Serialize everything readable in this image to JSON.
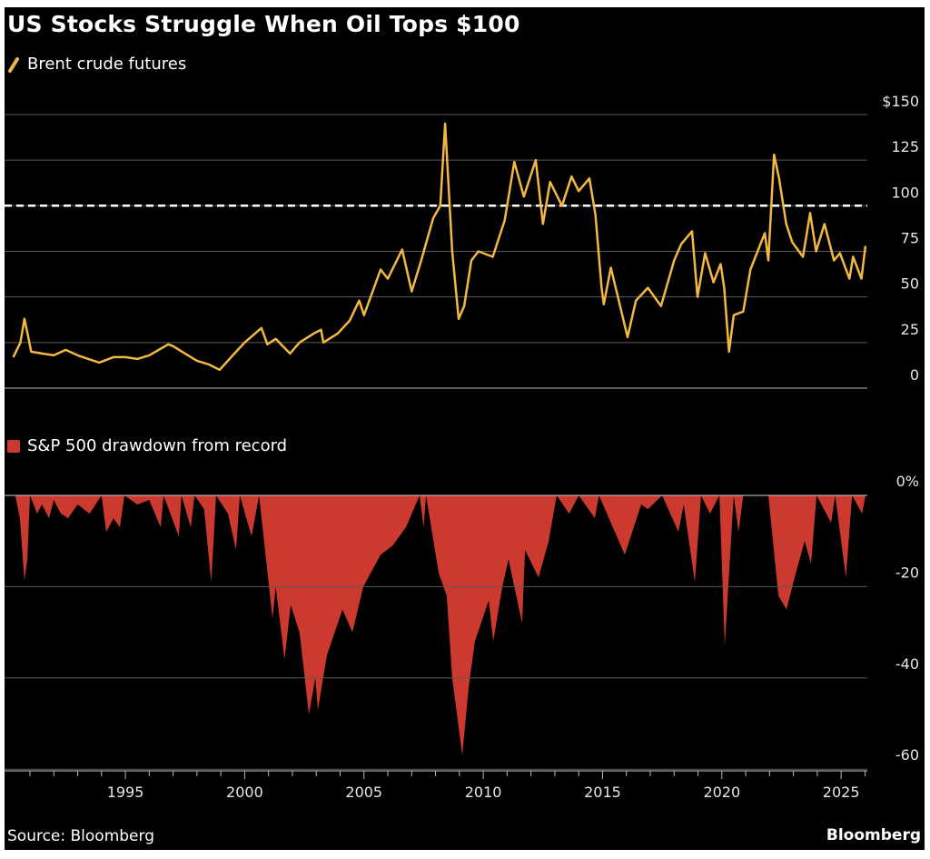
{
  "title": "US Stocks Struggle When Oil Tops $100",
  "source": "Source: Bloomberg",
  "brand": "Bloomberg",
  "colors": {
    "oil": "#f2b844",
    "drawdown": "#cc3a2f",
    "reference": "#ffffff",
    "grid": "#5a5a5a",
    "background": "#000000"
  },
  "chart_data": [
    {
      "type": "line",
      "legend": "Brent crude futures",
      "legend_placement": "top-left",
      "ylim": [
        0,
        150
      ],
      "yticks": [
        {
          "v": 150,
          "label": "$150"
        },
        {
          "v": 125,
          "label": "125"
        },
        {
          "v": 100,
          "label": "100"
        },
        {
          "v": 75,
          "label": "75"
        },
        {
          "v": 50,
          "label": "50"
        },
        {
          "v": 25,
          "label": "25"
        },
        {
          "v": 0,
          "label": "0"
        }
      ],
      "reference_line": {
        "value": 100,
        "style": "dashed"
      },
      "grid": true,
      "points": [
        [
          1990.3,
          17
        ],
        [
          1990.6,
          25
        ],
        [
          1990.77,
          38
        ],
        [
          1990.9,
          30
        ],
        [
          1991.05,
          20
        ],
        [
          1991.5,
          19
        ],
        [
          1992,
          18
        ],
        [
          1992.5,
          21
        ],
        [
          1993,
          18
        ],
        [
          1993.9,
          14
        ],
        [
          1994.5,
          17
        ],
        [
          1995,
          17
        ],
        [
          1995.5,
          16
        ],
        [
          1996,
          18
        ],
        [
          1996.8,
          24
        ],
        [
          1997,
          23
        ],
        [
          1997.5,
          19
        ],
        [
          1998,
          15
        ],
        [
          1998.5,
          13
        ],
        [
          1998.95,
          10
        ],
        [
          1999.5,
          18
        ],
        [
          2000,
          25
        ],
        [
          2000.7,
          33
        ],
        [
          2000.95,
          24
        ],
        [
          2001.3,
          27
        ],
        [
          2001.9,
          19
        ],
        [
          2002.3,
          25
        ],
        [
          2002.9,
          30
        ],
        [
          2003.2,
          32
        ],
        [
          2003.3,
          25
        ],
        [
          2003.9,
          30
        ],
        [
          2004.4,
          37
        ],
        [
          2004.8,
          48
        ],
        [
          2005,
          40
        ],
        [
          2005.7,
          65
        ],
        [
          2006,
          60
        ],
        [
          2006.6,
          76
        ],
        [
          2007,
          53
        ],
        [
          2007.4,
          70
        ],
        [
          2007.9,
          93
        ],
        [
          2008.2,
          100
        ],
        [
          2008.4,
          145
        ],
        [
          2008.7,
          75
        ],
        [
          2008.97,
          38
        ],
        [
          2009.2,
          45
        ],
        [
          2009.5,
          70
        ],
        [
          2009.8,
          75
        ],
        [
          2010.4,
          72
        ],
        [
          2010.9,
          92
        ],
        [
          2011.3,
          124
        ],
        [
          2011.7,
          105
        ],
        [
          2012.2,
          125
        ],
        [
          2012.5,
          90
        ],
        [
          2012.8,
          113
        ],
        [
          2013.3,
          100
        ],
        [
          2013.7,
          116
        ],
        [
          2014,
          108
        ],
        [
          2014.45,
          115
        ],
        [
          2014.7,
          95
        ],
        [
          2014.96,
          55
        ],
        [
          2015.05,
          46
        ],
        [
          2015.35,
          66
        ],
        [
          2015.7,
          47
        ],
        [
          2016.05,
          28
        ],
        [
          2016.4,
          48
        ],
        [
          2016.9,
          55
        ],
        [
          2017.45,
          45
        ],
        [
          2018,
          70
        ],
        [
          2018.3,
          79
        ],
        [
          2018.75,
          86
        ],
        [
          2018.98,
          50
        ],
        [
          2019.3,
          74
        ],
        [
          2019.65,
          58
        ],
        [
          2019.95,
          68
        ],
        [
          2020.1,
          55
        ],
        [
          2020.3,
          20
        ],
        [
          2020.5,
          40
        ],
        [
          2020.9,
          42
        ],
        [
          2021.2,
          65
        ],
        [
          2021.8,
          85
        ],
        [
          2021.95,
          70
        ],
        [
          2022.19,
          128
        ],
        [
          2022.4,
          115
        ],
        [
          2022.7,
          90
        ],
        [
          2022.95,
          80
        ],
        [
          2023.4,
          72
        ],
        [
          2023.7,
          96
        ],
        [
          2023.95,
          75
        ],
        [
          2024.3,
          90
        ],
        [
          2024.7,
          70
        ],
        [
          2024.95,
          74
        ],
        [
          2025.35,
          60
        ],
        [
          2025.5,
          72
        ],
        [
          2025.85,
          60
        ],
        [
          2026.02,
          78
        ]
      ]
    },
    {
      "type": "area",
      "legend": "S&P 500 drawdown from record",
      "legend_placement": "top-left",
      "ylim": [
        -60,
        0
      ],
      "yticks": [
        {
          "v": 0,
          "label": "0%"
        },
        {
          "v": -20,
          "label": "-20"
        },
        {
          "v": -40,
          "label": "-40"
        },
        {
          "v": -60,
          "label": "-60"
        }
      ],
      "grid": true,
      "points": [
        [
          1990.39,
          0
        ],
        [
          1990.58,
          -5
        ],
        [
          1990.77,
          -18.6
        ],
        [
          1990.89,
          -14
        ],
        [
          1991.0,
          0
        ],
        [
          1991.3,
          -4
        ],
        [
          1991.5,
          -2
        ],
        [
          1991.8,
          -5
        ],
        [
          1992.0,
          -1
        ],
        [
          1992.3,
          -4
        ],
        [
          1992.6,
          -5
        ],
        [
          1993.0,
          -2
        ],
        [
          1993.5,
          -4
        ],
        [
          1994.0,
          0
        ],
        [
          1994.2,
          -8
        ],
        [
          1994.5,
          -5
        ],
        [
          1994.77,
          -7
        ],
        [
          1994.96,
          0
        ],
        [
          1995.5,
          -2
        ],
        [
          1996.0,
          -1
        ],
        [
          1996.48,
          -7
        ],
        [
          1996.6,
          0
        ],
        [
          1997.24,
          -9
        ],
        [
          1997.35,
          0
        ],
        [
          1997.74,
          -7
        ],
        [
          1997.9,
          0
        ],
        [
          1998.3,
          -3
        ],
        [
          1998.6,
          -19
        ],
        [
          1998.8,
          0
        ],
        [
          1999.3,
          -4
        ],
        [
          1999.64,
          -12
        ],
        [
          1999.8,
          0
        ],
        [
          2000.29,
          -9
        ],
        [
          2000.6,
          0
        ],
        [
          2001.17,
          -27
        ],
        [
          2001.3,
          -20
        ],
        [
          2001.67,
          -36
        ],
        [
          2001.93,
          -24
        ],
        [
          2002.3,
          -30
        ],
        [
          2002.69,
          -48
        ],
        [
          2002.96,
          -40
        ],
        [
          2003.07,
          -47
        ],
        [
          2003.45,
          -35
        ],
        [
          2004.1,
          -25
        ],
        [
          2004.52,
          -30
        ],
        [
          2004.97,
          -20
        ],
        [
          2005.7,
          -13
        ],
        [
          2006.2,
          -11
        ],
        [
          2006.76,
          -7
        ],
        [
          2007.33,
          0
        ],
        [
          2007.5,
          -7
        ],
        [
          2007.6,
          0
        ],
        [
          2008.13,
          -17
        ],
        [
          2008.47,
          -22
        ],
        [
          2008.7,
          -40
        ],
        [
          2009.12,
          -57
        ],
        [
          2009.39,
          -42
        ],
        [
          2009.65,
          -32
        ],
        [
          2010.23,
          -23
        ],
        [
          2010.42,
          -32
        ],
        [
          2010.8,
          -20
        ],
        [
          2011.06,
          -14
        ],
        [
          2011.63,
          -28
        ],
        [
          2011.75,
          -12
        ],
        [
          2012.32,
          -18
        ],
        [
          2012.74,
          -10
        ],
        [
          2013.08,
          0
        ],
        [
          2013.6,
          -4
        ],
        [
          2014.0,
          0
        ],
        [
          2014.68,
          -5
        ],
        [
          2014.85,
          0
        ],
        [
          2015.93,
          -13
        ],
        [
          2016.62,
          -2
        ],
        [
          2016.9,
          -3
        ],
        [
          2017.5,
          0
        ],
        [
          2018.18,
          -8
        ],
        [
          2018.4,
          -2
        ],
        [
          2018.87,
          -19
        ],
        [
          2019.13,
          0
        ],
        [
          2019.5,
          -4
        ],
        [
          2019.9,
          0
        ],
        [
          2020.12,
          -33
        ],
        [
          2020.5,
          0
        ],
        [
          2020.7,
          -8
        ],
        [
          2020.9,
          0
        ],
        [
          2021.95,
          0
        ],
        [
          2022.37,
          -22
        ],
        [
          2022.71,
          -25
        ],
        [
          2023.05,
          -18
        ],
        [
          2023.47,
          -10
        ],
        [
          2023.74,
          -15
        ],
        [
          2023.97,
          0
        ],
        [
          2024.58,
          -6
        ],
        [
          2024.75,
          0
        ],
        [
          2025.2,
          -18
        ],
        [
          2025.46,
          0
        ],
        [
          2025.88,
          -4
        ],
        [
          2026.02,
          0
        ]
      ]
    }
  ],
  "x_axis": {
    "range": [
      1990,
      2026
    ],
    "tick_labels": [
      "1995",
      "2000",
      "2005",
      "2010",
      "2015",
      "2020",
      "2025"
    ]
  }
}
